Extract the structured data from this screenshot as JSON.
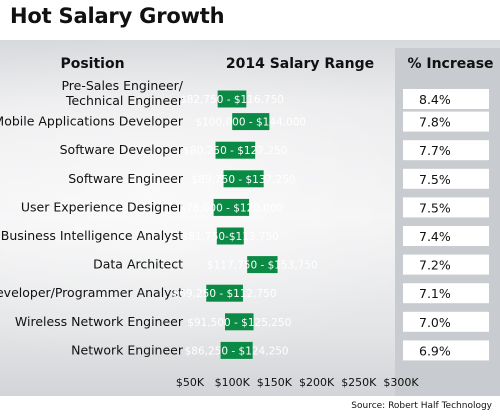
{
  "header": {
    "title": "Hot Salary Growth",
    "col_position": "Position",
    "col_range": "2014 Salary Range",
    "col_increase": "% Increase"
  },
  "source": "Source: Robert Half Technology",
  "colors": {
    "bar": "#0a8a45",
    "bar_text": "#ffffff",
    "pct_box": "#ffffff"
  },
  "chart_data": {
    "type": "bar",
    "title": "Hot Salary Growth",
    "orientation": "horizontal-range",
    "xlim": [
      50000,
      300000
    ],
    "x_ticks": [
      "$50K",
      "$100K",
      "$150K",
      "$200K",
      "$250K",
      "$300K"
    ],
    "x_tick_values": [
      50000,
      100000,
      150000,
      200000,
      250000,
      300000
    ],
    "categories": [
      "Pre-Sales Engineer/ Technical Engineer",
      "Mobile Applications Developer",
      "Software Developer",
      "Software Engineer",
      "User Experience Designer",
      "Business Intelligence Analyst",
      "Data Architect",
      "Developer/Programmer Analyst",
      "Wireless Network Engineer",
      "Network Engineer"
    ],
    "category_lines": [
      [
        "Pre-Sales Engineer/",
        "Technical Engineer"
      ],
      [
        "Mobile Applications Developer"
      ],
      [
        "Software Developer"
      ],
      [
        "Software Engineer"
      ],
      [
        "User Experience Designer"
      ],
      [
        "Business Intelligence Analyst"
      ],
      [
        "Data Architect"
      ],
      [
        "Developer/Programmer Analyst"
      ],
      [
        "Wireless Network Engineer"
      ],
      [
        "Network Engineer"
      ]
    ],
    "low": [
      82750,
      100000,
      80250,
      89750,
      78000,
      81750,
      117750,
      69250,
      91500,
      86250
    ],
    "high": [
      116750,
      144000,
      127250,
      137250,
      120000,
      113750,
      153750,
      112750,
      125250,
      124250
    ],
    "range_labels": [
      "$82,750 - $116,750",
      "$100,000 - $144,000",
      "$80,250 - $127,250",
      "$89,750 - $137,250",
      "$78,000 - $120,000",
      "$81,750-$113,750",
      "$117,750 - $153,750",
      "$69,250 - $112,750",
      "$91,500 - $125,250",
      "$86,250 - $124,250"
    ],
    "percent_increase": [
      "8.4%",
      "7.8%",
      "7.7%",
      "7.5%",
      "7.5%",
      "7.4%",
      "7.2%",
      "7.1%",
      "7.0%",
      "6.9%"
    ]
  }
}
